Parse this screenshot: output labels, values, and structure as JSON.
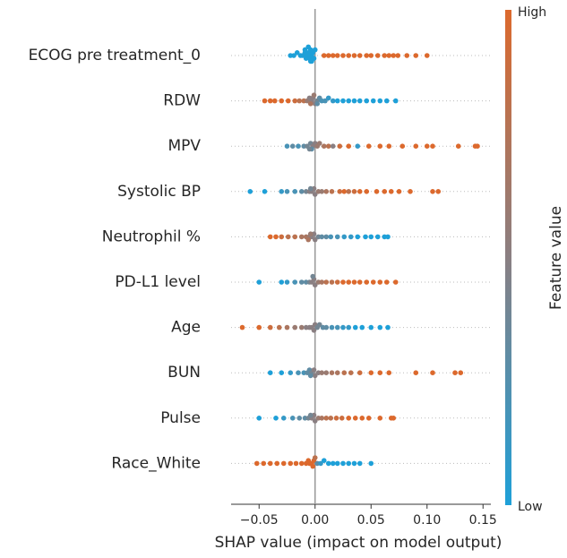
{
  "chart_data": {
    "type": "beeswarm",
    "xlabel": "SHAP value (impact on model output)",
    "colorbar_label": "Feature value",
    "colorbar_high": "High",
    "colorbar_low": "Low",
    "low_color": "#1ea0d8",
    "mid_color": "#8a7f82",
    "high_color": "#dc692d",
    "xlim": [
      -0.075,
      0.157
    ],
    "xticks": [
      {
        "value": -0.05,
        "label": "−0.05"
      },
      {
        "value": 0,
        "label": "0.00"
      },
      0.05,
      {
        "value": 0.1,
        "label": "0.10"
      },
      0.15
    ],
    "categories": [
      "ECOG pre treatment_0",
      "RDW",
      "MPV",
      "Systolic BP",
      "Neutrophil %",
      "PD-L1 level",
      "Age",
      "BUN",
      "Pulse",
      "Race_White"
    ],
    "values": [
      [
        -0.022,
        -0.019,
        -0.016,
        -0.013,
        -0.011,
        -0.009,
        -0.008,
        -0.007,
        -0.006,
        -0.005,
        -0.004,
        -0.003,
        -0.002,
        -0.001,
        0,
        -0.004,
        -0.006,
        -0.009,
        -0.003,
        0.008,
        0.012,
        0.016,
        0.02,
        0.025,
        0.03,
        0.035,
        0.04,
        0.046,
        0.05,
        0.056,
        0.062,
        0.066,
        0.07,
        0.074,
        0.082,
        0.09,
        0.1
      ],
      [
        -0.045,
        -0.04,
        -0.036,
        -0.03,
        -0.024,
        -0.018,
        -0.014,
        -0.01,
        -0.007,
        -0.005,
        -0.003,
        -0.002,
        0,
        -0.004,
        0.002,
        0.004,
        0.006,
        0.009,
        0.012,
        0.016,
        0.02,
        0.025,
        0.03,
        0.035,
        0.04,
        0.046,
        0.052,
        0.058,
        0.064,
        0.072,
        0.002,
        -0.001
      ],
      [
        -0.025,
        -0.02,
        -0.015,
        -0.01,
        -0.007,
        -0.004,
        -0.002,
        0,
        -0.003,
        -0.005,
        0.002,
        0.004,
        0.008,
        0.012,
        0.016,
        0.022,
        0.03,
        0.038,
        0.048,
        0.058,
        0.066,
        0.078,
        0.09,
        0.1,
        0.105,
        0.128,
        0.145,
        0.143
      ],
      [
        -0.058,
        -0.045,
        -0.03,
        -0.025,
        -0.018,
        -0.012,
        -0.008,
        -0.005,
        -0.003,
        -0.001,
        0,
        -0.004,
        0.003,
        0.006,
        0.01,
        0.015,
        0.022,
        0.026,
        0.03,
        0.035,
        0.04,
        0.046,
        0.055,
        0.062,
        0.068,
        0.075,
        0.085,
        0.105,
        0.11
      ],
      [
        -0.04,
        -0.035,
        -0.03,
        -0.024,
        -0.018,
        -0.012,
        -0.008,
        -0.005,
        -0.003,
        -0.001,
        0,
        -0.004,
        -0.006,
        0.003,
        0.006,
        0.01,
        0.014,
        0.02,
        0.026,
        0.032,
        0.038,
        0.045,
        0.05,
        0.056,
        0.062,
        0.065
      ],
      [
        -0.05,
        -0.03,
        -0.025,
        -0.018,
        -0.012,
        -0.008,
        -0.005,
        -0.003,
        -0.001,
        0,
        -0.002,
        0.003,
        0.006,
        0.01,
        0.015,
        0.02,
        0.025,
        0.03,
        0.035,
        0.04,
        0.046,
        0.052,
        0.058,
        0.064,
        0.072
      ],
      [
        -0.065,
        -0.05,
        -0.04,
        -0.032,
        -0.025,
        -0.018,
        -0.012,
        -0.008,
        -0.005,
        -0.003,
        0,
        -0.001,
        0.002,
        0.004,
        0.007,
        0.01,
        0.015,
        0.02,
        0.025,
        0.03,
        0.036,
        0.042,
        0.05,
        0.058,
        0.065
      ],
      [
        -0.04,
        -0.03,
        -0.022,
        -0.015,
        -0.01,
        -0.007,
        -0.005,
        -0.003,
        -0.001,
        0,
        -0.004,
        0.003,
        0.006,
        0.01,
        0.015,
        0.02,
        0.026,
        0.032,
        0.04,
        0.05,
        0.058,
        0.066,
        0.09,
        0.105,
        0.125,
        0.13
      ],
      [
        -0.05,
        -0.035,
        -0.028,
        -0.02,
        -0.014,
        -0.009,
        -0.006,
        -0.003,
        -0.001,
        0,
        -0.004,
        0.003,
        0.006,
        0.01,
        0.014,
        0.019,
        0.024,
        0.03,
        0.036,
        0.042,
        0.048,
        0.058,
        0.068,
        0.07
      ],
      [
        -0.052,
        -0.046,
        -0.04,
        -0.034,
        -0.028,
        -0.022,
        -0.017,
        -0.012,
        -0.008,
        -0.005,
        -0.003,
        -0.001,
        -0.002,
        -0.006,
        0,
        0.002,
        0.005,
        0.008,
        0.012,
        0.016,
        0.02,
        0.025,
        0.03,
        0.035,
        0.04,
        0.05
      ]
    ],
    "levels": [
      [
        0,
        0,
        0,
        0,
        0,
        0,
        0,
        0,
        0,
        0,
        0,
        0,
        0,
        0,
        0,
        0,
        0,
        0,
        0,
        1,
        1,
        1,
        1,
        1,
        1,
        1,
        1,
        1,
        1,
        1,
        1,
        1,
        1,
        1,
        1,
        1,
        1
      ],
      [
        1,
        1,
        1,
        1,
        1,
        0.9,
        0.8,
        0.8,
        0.6,
        0.5,
        0.5,
        0.5,
        0.5,
        0.7,
        0.4,
        0.3,
        0.2,
        0.2,
        0.1,
        0.1,
        0,
        0,
        0,
        0,
        0,
        0,
        0,
        0,
        0,
        0,
        0.3,
        0.6
      ],
      [
        0.2,
        0.3,
        0.2,
        0.3,
        0.4,
        0.4,
        0.5,
        0.5,
        0.3,
        0.4,
        0.6,
        0.6,
        0.7,
        0.8,
        0.5,
        0.9,
        1,
        0.1,
        1,
        1,
        1,
        1,
        1,
        1,
        1,
        1,
        1,
        1
      ],
      [
        0,
        0,
        0.1,
        0.2,
        0.2,
        0.3,
        0.4,
        0.5,
        0.5,
        0.5,
        0.5,
        0.4,
        0.6,
        0.6,
        0.7,
        0.8,
        0.9,
        1,
        0.8,
        0.9,
        1,
        1,
        1,
        1,
        1,
        1,
        1,
        1,
        1
      ],
      [
        1,
        1,
        0.9,
        0.8,
        0.8,
        0.7,
        0.7,
        0.6,
        0.5,
        0.5,
        0.5,
        0.6,
        0.7,
        0.4,
        0.3,
        0.3,
        0.2,
        0.2,
        0.1,
        0.1,
        0,
        0,
        0,
        0,
        0,
        0
      ],
      [
        0,
        0,
        0.1,
        0.2,
        0.3,
        0.3,
        0.4,
        0.5,
        0.5,
        0.5,
        0.4,
        0.6,
        0.7,
        0.8,
        0.8,
        0.9,
        1,
        1,
        1,
        1,
        1,
        1,
        1,
        1,
        1
      ],
      [
        1,
        1,
        0.9,
        0.8,
        0.7,
        0.6,
        0.6,
        0.5,
        0.5,
        0.5,
        0.5,
        0.5,
        0.4,
        0.4,
        0.3,
        0.3,
        0.2,
        0.2,
        0.1,
        0.1,
        0,
        0,
        0,
        0,
        0
      ],
      [
        0,
        0,
        0.1,
        0.2,
        0.2,
        0.3,
        0.3,
        0.4,
        0.5,
        0.5,
        0.3,
        0.5,
        0.6,
        0.6,
        0.7,
        0.7,
        0.8,
        0.8,
        0.9,
        1,
        1,
        1,
        1,
        1,
        1,
        1
      ],
      [
        0,
        0,
        0.1,
        0.2,
        0.3,
        0.3,
        0.4,
        0.5,
        0.5,
        0.5,
        0.4,
        0.6,
        0.7,
        0.8,
        0.8,
        0.9,
        0.9,
        1,
        1,
        1,
        1,
        1,
        1,
        1
      ],
      [
        1,
        1,
        1,
        1,
        1,
        1,
        1,
        1,
        1,
        1,
        1,
        1,
        1,
        1,
        0.8,
        0.3,
        0.1,
        0,
        0,
        0,
        0,
        0,
        0,
        0,
        0,
        0
      ]
    ]
  }
}
